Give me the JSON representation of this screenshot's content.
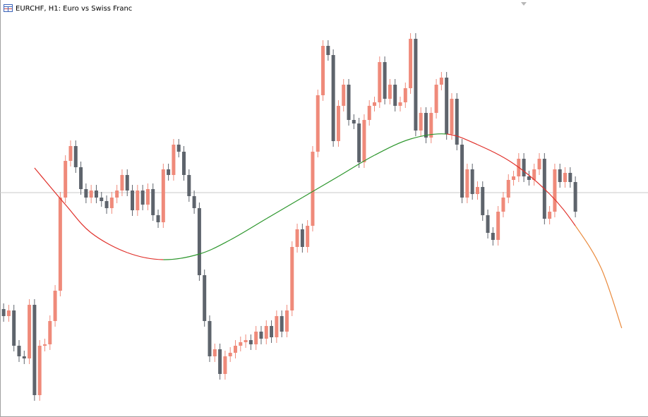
{
  "chart_data": {
    "type": "candlestick",
    "title": "EURCHF, H1:  Euro vs Swiss Franc",
    "ylim": [
      0,
      591
    ],
    "xlim": [
      -0.7,
      125.1
    ],
    "up_color": "#ef8a7a",
    "down_color": "#5e646c",
    "price_line": 318,
    "price_line_color": "#c8c8c8",
    "open": [
      153,
      143,
      151,
      101,
      86,
      83,
      159,
      31,
      101,
      103,
      136,
      179,
      311,
      363,
      384,
      354,
      323,
      311,
      321,
      311,
      306,
      296,
      311,
      321,
      343,
      321,
      293,
      321,
      301,
      323,
      286,
      276,
      351,
      343,
      386,
      376,
      343,
      313,
      296,
      201,
      136,
      86,
      96,
      61,
      86,
      91,
      101,
      106,
      109,
      103,
      121,
      111,
      129,
      113,
      143,
      121,
      151,
      241,
      266,
      241,
      271,
      376,
      456,
      526,
      513,
      391,
      441,
      471,
      421,
      416,
      361,
      421,
      441,
      446,
      503,
      451,
      471,
      441,
      446,
      466,
      536,
      406,
      431,
      396,
      431,
      471,
      481,
      401,
      451,
      386,
      311,
      351,
      316,
      326,
      286,
      261,
      251,
      291,
      311,
      336,
      341,
      366,
      341,
      336,
      351,
      366,
      281,
      291,
      351,
      333,
      346,
      333
    ],
    "high": [
      161,
      159,
      159,
      109,
      94,
      167,
      167,
      109,
      111,
      144,
      187,
      319,
      371,
      392,
      392,
      362,
      331,
      329,
      329,
      319,
      314,
      319,
      329,
      351,
      351,
      329,
      329,
      329,
      331,
      331,
      294,
      359,
      359,
      394,
      394,
      384,
      351,
      321,
      304,
      209,
      144,
      104,
      104,
      94,
      99,
      109,
      114,
      117,
      117,
      129,
      129,
      137,
      137,
      151,
      151,
      159,
      249,
      274,
      274,
      279,
      384,
      464,
      534,
      534,
      521,
      449,
      479,
      479,
      429,
      424,
      429,
      449,
      454,
      511,
      511,
      479,
      479,
      454,
      474,
      544,
      544,
      439,
      439,
      439,
      479,
      489,
      489,
      459,
      459,
      394,
      359,
      359,
      334,
      334,
      294,
      269,
      299,
      319,
      344,
      349,
      374,
      374,
      349,
      359,
      374,
      374,
      299,
      359,
      359,
      354,
      354,
      341
    ],
    "low": [
      135,
      135,
      93,
      78,
      75,
      75,
      23,
      23,
      93,
      95,
      128,
      171,
      303,
      355,
      346,
      315,
      303,
      303,
      303,
      298,
      288,
      288,
      303,
      313,
      313,
      285,
      285,
      293,
      293,
      278,
      268,
      268,
      335,
      335,
      368,
      335,
      305,
      288,
      193,
      128,
      78,
      78,
      53,
      53,
      78,
      83,
      93,
      98,
      95,
      95,
      103,
      103,
      105,
      105,
      113,
      113,
      143,
      233,
      233,
      233,
      263,
      368,
      448,
      505,
      383,
      383,
      433,
      413,
      408,
      353,
      353,
      413,
      433,
      438,
      443,
      443,
      433,
      433,
      438,
      458,
      398,
      398,
      388,
      388,
      423,
      463,
      393,
      393,
      378,
      303,
      303,
      308,
      308,
      278,
      253,
      243,
      243,
      283,
      303,
      328,
      333,
      333,
      328,
      328,
      343,
      273,
      273,
      283,
      325,
      325,
      325,
      283
    ],
    "close": [
      143,
      151,
      101,
      86,
      83,
      159,
      31,
      101,
      103,
      136,
      179,
      311,
      363,
      384,
      354,
      323,
      311,
      321,
      311,
      306,
      296,
      311,
      321,
      343,
      321,
      293,
      321,
      301,
      323,
      286,
      276,
      351,
      343,
      386,
      376,
      343,
      313,
      296,
      201,
      136,
      86,
      96,
      61,
      86,
      91,
      101,
      106,
      109,
      103,
      121,
      111,
      129,
      113,
      143,
      121,
      151,
      241,
      266,
      241,
      271,
      376,
      456,
      526,
      513,
      391,
      441,
      471,
      421,
      416,
      361,
      421,
      441,
      446,
      503,
      451,
      471,
      441,
      446,
      466,
      536,
      406,
      431,
      396,
      431,
      471,
      481,
      401,
      451,
      386,
      311,
      351,
      316,
      326,
      286,
      261,
      251,
      291,
      311,
      336,
      341,
      366,
      341,
      336,
      351,
      366,
      281,
      291,
      351,
      333,
      346,
      333,
      291
    ],
    "series": [
      {
        "x": [
          6,
          12,
          17,
          24,
          31,
          38,
          44,
          51,
          58,
          65,
          72,
          79,
          86,
          92,
          99,
          106,
          111,
          116,
          120
        ],
        "values": [
          353,
          301,
          261,
          233,
          223,
          231,
          251,
          281,
          311,
          341,
          371,
          394,
          401,
          386,
          359,
          316,
          271,
          211,
          126
        ],
        "up_color": "#2c962c",
        "down_color": "#e0302a",
        "projection_color": "#ea8a3c"
      }
    ]
  }
}
